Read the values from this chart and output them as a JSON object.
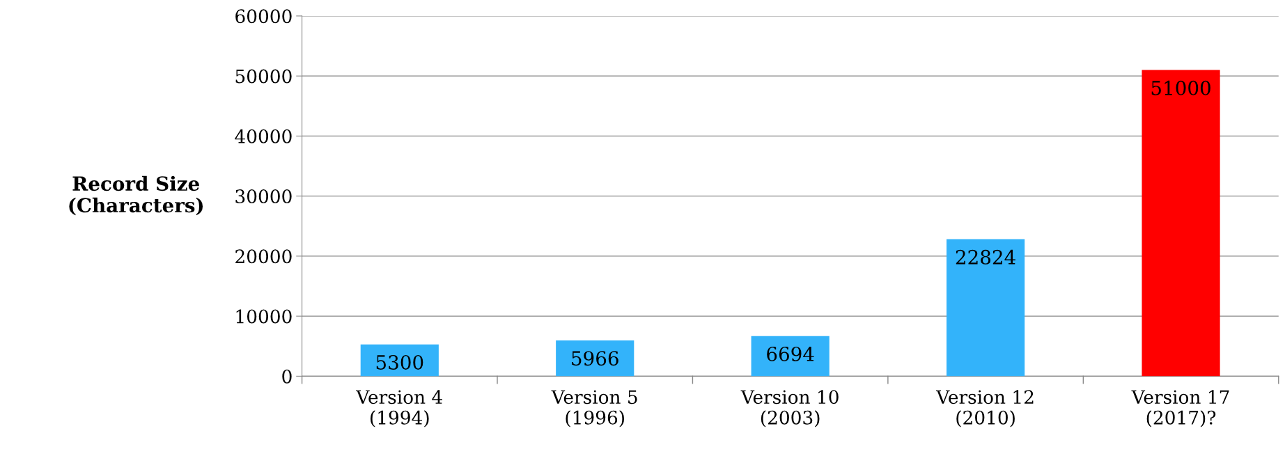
{
  "chart_data": {
    "type": "bar",
    "ylabel": "Record Size\n(Characters)",
    "categories": [
      "Version 4\n(1994)",
      "Version 5\n(1996)",
      "Version 10\n(2003)",
      "Version 12\n(2010)",
      "Version 17\n(2017)?"
    ],
    "values": [
      5300,
      5966,
      6694,
      22824,
      51000
    ],
    "colors": [
      "#33b3fa",
      "#33b3fa",
      "#33b3fa",
      "#33b3fa",
      "#ff0000"
    ],
    "ylim": [
      0,
      60000
    ],
    "yticks": [
      0,
      10000,
      20000,
      30000,
      40000,
      50000,
      60000
    ],
    "grid": "y",
    "data_labels": true,
    "legend": false
  }
}
